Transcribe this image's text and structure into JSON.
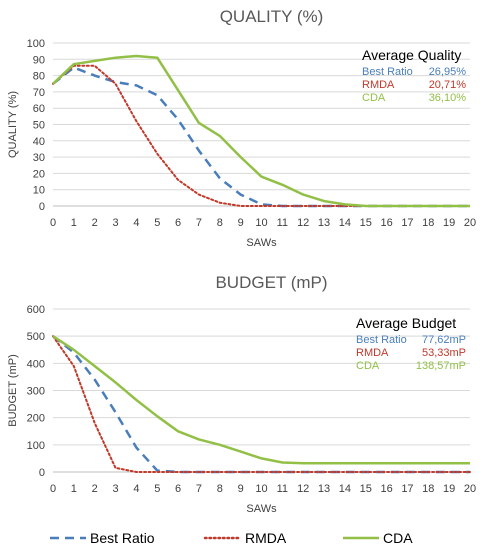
{
  "colors": {
    "best_ratio": "#4A7EBB",
    "rmda": "#C0392B",
    "cda": "#92C047",
    "grid": "#D9D9D9",
    "axis": "#BFBFBF"
  },
  "legend": [
    {
      "label": "Best Ratio",
      "style": "dashed",
      "color": "#4A7EBB"
    },
    {
      "label": "RMDA",
      "style": "dotted",
      "color": "#C0392B"
    },
    {
      "label": "CDA",
      "style": "solid",
      "color": "#92C047"
    }
  ],
  "chart_data": [
    {
      "type": "line",
      "title": "QUALITY (%)",
      "xlabel": "SAWs",
      "ylabel": "QUALITY (%)",
      "ylim": [
        0,
        100
      ],
      "yticks": [
        "0",
        "10",
        "20",
        "30",
        "40",
        "50",
        "60",
        "70",
        "80",
        "90",
        "100"
      ],
      "xticks": [
        "0",
        "1",
        "2",
        "3",
        "4",
        "5",
        "6",
        "7",
        "8",
        "9",
        "10",
        "11",
        "12",
        "13",
        "14",
        "15",
        "16",
        "17",
        "18",
        "19",
        "20"
      ],
      "x": [
        0,
        1,
        2,
        3,
        4,
        5,
        6,
        7,
        8,
        9,
        10,
        11,
        12,
        13,
        14,
        15,
        16,
        17,
        18,
        19,
        20
      ],
      "grid": "horizontal",
      "series": [
        {
          "name": "Best Ratio",
          "values": [
            75,
            85,
            80,
            76,
            74,
            68,
            53,
            34,
            17,
            7,
            1,
            0,
            0,
            0,
            0,
            0,
            0,
            0,
            0,
            0,
            0
          ]
        },
        {
          "name": "RMDA",
          "values": [
            75,
            86,
            86,
            75,
            52,
            32,
            16,
            7,
            2,
            0,
            0,
            0,
            0,
            0,
            0,
            0,
            0,
            0,
            0,
            0,
            0
          ]
        },
        {
          "name": "CDA",
          "values": [
            75,
            87,
            89,
            91,
            92,
            91,
            71,
            51,
            43,
            30,
            18,
            13,
            7,
            3,
            1,
            0,
            0,
            0,
            0,
            0,
            0
          ]
        }
      ],
      "annotation": {
        "heading": "Average Quality",
        "rows": [
          {
            "name": "Best Ratio",
            "value": "26,95%"
          },
          {
            "name": "RMDA",
            "value": "20,71%"
          },
          {
            "name": "CDA",
            "value": "36,10%"
          }
        ]
      }
    },
    {
      "type": "line",
      "title": "BUDGET (mP)",
      "xlabel": "SAWs",
      "ylabel": "BUDGET (mP)",
      "ylim": [
        0,
        600
      ],
      "yticks": [
        "0",
        "100",
        "200",
        "300",
        "400",
        "500",
        "600"
      ],
      "xticks": [
        "0",
        "1",
        "2",
        "3",
        "4",
        "5",
        "6",
        "7",
        "8",
        "9",
        "10",
        "11",
        "12",
        "13",
        "14",
        "15",
        "16",
        "17",
        "18",
        "19",
        "20"
      ],
      "x": [
        0,
        1,
        2,
        3,
        4,
        5,
        6,
        7,
        8,
        9,
        10,
        11,
        12,
        13,
        14,
        15,
        16,
        17,
        18,
        19,
        20
      ],
      "grid": "horizontal",
      "series": [
        {
          "name": "Best Ratio",
          "values": [
            500,
            440,
            340,
            220,
            90,
            5,
            0,
            0,
            0,
            0,
            0,
            0,
            0,
            0,
            0,
            0,
            0,
            0,
            0,
            0,
            0
          ]
        },
        {
          "name": "RMDA",
          "values": [
            500,
            390,
            180,
            15,
            0,
            0,
            0,
            0,
            0,
            0,
            0,
            0,
            0,
            0,
            0,
            0,
            0,
            0,
            0,
            0,
            0
          ]
        },
        {
          "name": "CDA",
          "values": [
            500,
            450,
            390,
            330,
            265,
            205,
            150,
            120,
            100,
            75,
            50,
            35,
            32,
            32,
            32,
            32,
            32,
            32,
            32,
            32,
            32
          ]
        }
      ],
      "annotation": {
        "heading": "Average Budget",
        "rows": [
          {
            "name": "Best Ratio",
            "value": "77,62mP"
          },
          {
            "name": "RMDA",
            "value": "53,33mP"
          },
          {
            "name": "CDA",
            "value": "138,57mP"
          }
        ]
      }
    }
  ]
}
